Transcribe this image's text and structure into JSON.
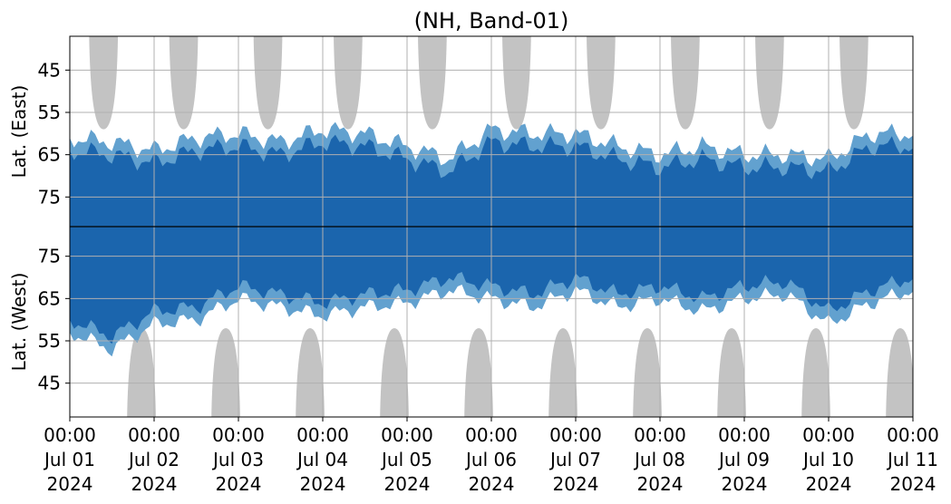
{
  "chart_data": {
    "type": "heatmap",
    "title": "(NH, Band-01)",
    "ylabel_top": "Lat. (East)",
    "ylabel_bottom": "Lat. (West)",
    "y_tick_labels_top": [
      "45",
      "55",
      "65",
      "75"
    ],
    "y_tick_labels_bottom": [
      "75",
      "65",
      "55",
      "45"
    ],
    "y_tick_values_top": [
      45,
      55,
      65,
      75
    ],
    "y_tick_values_bottom": [
      75,
      65,
      55,
      45
    ],
    "ylim_top": [
      37,
      82
    ],
    "ylim_bottom": [
      82,
      37
    ],
    "x_ticks": [
      {
        "time": "00:00",
        "day": "Jul 01",
        "year": "2024"
      },
      {
        "time": "00:00",
        "day": "Jul 02",
        "year": "2024"
      },
      {
        "time": "00:00",
        "day": "Jul 03",
        "year": "2024"
      },
      {
        "time": "00:00",
        "day": "Jul 04",
        "year": "2024"
      },
      {
        "time": "00:00",
        "day": "Jul 05",
        "year": "2024"
      },
      {
        "time": "00:00",
        "day": "Jul 06",
        "year": "2024"
      },
      {
        "time": "00:00",
        "day": "Jul 07",
        "year": "2024"
      },
      {
        "time": "00:00",
        "day": "Jul 08",
        "year": "2024"
      },
      {
        "time": "00:00",
        "day": "Jul 09",
        "year": "2024"
      },
      {
        "time": "00:00",
        "day": "Jul 10",
        "year": "2024"
      },
      {
        "time": "00:00",
        "day": "Jul 11",
        "year": "2024"
      }
    ],
    "xlim": [
      "2024-07-01T00:00",
      "2024-07-11T00:00"
    ],
    "grid": true,
    "colors": {
      "data_dark": "#1b65ad",
      "data_light": "#62a1cf",
      "no_data": "#c3c3c3",
      "grid": "#b0b0b0",
      "divider": "#000000"
    },
    "gray_regions_top": [
      {
        "center_day": 0.4,
        "min_lat": 59
      },
      {
        "center_day": 1.35,
        "min_lat": 59
      },
      {
        "center_day": 2.35,
        "min_lat": 59
      },
      {
        "center_day": 3.3,
        "min_lat": 59
      },
      {
        "center_day": 4.3,
        "min_lat": 59
      },
      {
        "center_day": 5.3,
        "min_lat": 59
      },
      {
        "center_day": 6.3,
        "min_lat": 59
      },
      {
        "center_day": 7.3,
        "min_lat": 59
      },
      {
        "center_day": 8.3,
        "min_lat": 59
      },
      {
        "center_day": 9.3,
        "min_lat": 59
      }
    ],
    "gray_regions_bottom": [
      {
        "center_day": 0.85,
        "min_lat": 58
      },
      {
        "center_day": 1.85,
        "min_lat": 58
      },
      {
        "center_day": 2.85,
        "min_lat": 58
      },
      {
        "center_day": 3.85,
        "min_lat": 58
      },
      {
        "center_day": 4.85,
        "min_lat": 58
      },
      {
        "center_day": 5.85,
        "min_lat": 58
      },
      {
        "center_day": 6.85,
        "min_lat": 58
      },
      {
        "center_day": 7.85,
        "min_lat": 58
      },
      {
        "center_day": 8.85,
        "min_lat": 58
      },
      {
        "center_day": 9.85,
        "min_lat": 58
      }
    ],
    "coverage_top_min_lat": [
      {
        "day": 0.0,
        "lat": 64
      },
      {
        "day": 0.5,
        "lat": 65
      },
      {
        "day": 1.0,
        "lat": 67
      },
      {
        "day": 1.5,
        "lat": 64
      },
      {
        "day": 2.0,
        "lat": 63
      },
      {
        "day": 2.5,
        "lat": 65
      },
      {
        "day": 3.0,
        "lat": 62
      },
      {
        "day": 3.5,
        "lat": 63
      },
      {
        "day": 4.0,
        "lat": 66
      },
      {
        "day": 4.5,
        "lat": 69
      },
      {
        "day": 5.0,
        "lat": 62
      },
      {
        "day": 5.5,
        "lat": 63
      },
      {
        "day": 6.0,
        "lat": 63
      },
      {
        "day": 6.5,
        "lat": 66
      },
      {
        "day": 7.0,
        "lat": 68
      },
      {
        "day": 7.5,
        "lat": 66
      },
      {
        "day": 8.0,
        "lat": 68
      },
      {
        "day": 8.5,
        "lat": 68
      },
      {
        "day": 9.0,
        "lat": 69
      },
      {
        "day": 9.5,
        "lat": 63
      },
      {
        "day": 10.0,
        "lat": 63
      }
    ],
    "coverage_bottom_min_lat": [
      {
        "day": 0.0,
        "lat": 60
      },
      {
        "day": 0.5,
        "lat": 56
      },
      {
        "day": 1.0,
        "lat": 62
      },
      {
        "day": 1.5,
        "lat": 63
      },
      {
        "day": 2.0,
        "lat": 68
      },
      {
        "day": 2.5,
        "lat": 66
      },
      {
        "day": 3.0,
        "lat": 64
      },
      {
        "day": 3.5,
        "lat": 66
      },
      {
        "day": 4.0,
        "lat": 67
      },
      {
        "day": 4.5,
        "lat": 70
      },
      {
        "day": 5.0,
        "lat": 68
      },
      {
        "day": 5.5,
        "lat": 66
      },
      {
        "day": 6.0,
        "lat": 70
      },
      {
        "day": 6.5,
        "lat": 66
      },
      {
        "day": 7.0,
        "lat": 68
      },
      {
        "day": 7.5,
        "lat": 65
      },
      {
        "day": 8.0,
        "lat": 68
      },
      {
        "day": 8.5,
        "lat": 69
      },
      {
        "day": 9.0,
        "lat": 62
      },
      {
        "day": 9.5,
        "lat": 67
      },
      {
        "day": 10.0,
        "lat": 70
      }
    ]
  }
}
